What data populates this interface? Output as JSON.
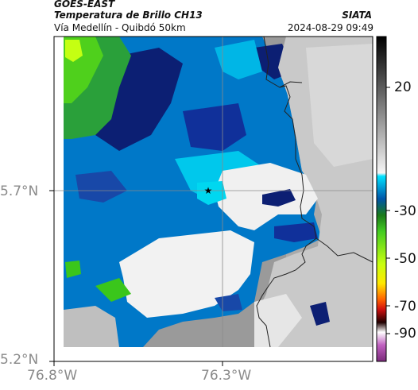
{
  "header": {
    "satellite": "GOES-EAST",
    "product": "Temperatura de Brillo CH13",
    "region": "Vía Medellín - Quibdó 50km",
    "org": "SIATA",
    "datetime": "2024-08-29 09:49"
  },
  "axes": {
    "lat_ticks": [
      "5.7°N",
      "5.2°N"
    ],
    "lon_ticks": [
      "76.8°W",
      "76.3°W"
    ]
  },
  "colorbar": {
    "ticks": [
      "20",
      "-30",
      "-50",
      "-70",
      "-90"
    ],
    "colors": {
      "white": "#f2f2f2",
      "cyan": "#00d7f0",
      "blue": "#0070c0",
      "navy": "#0c1f73",
      "green": "#3ac61b",
      "lime": "#c5ff12",
      "yellow": "#ffe600",
      "red": "#e0140b",
      "black": "#000000",
      "magenta": "#b040b0"
    }
  },
  "map": {
    "marker": "star-icon",
    "crosshair": true
  }
}
